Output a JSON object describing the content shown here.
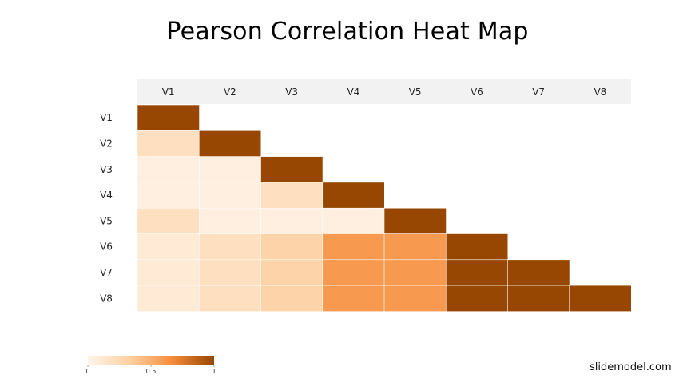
{
  "chart_data": {
    "type": "heatmap",
    "title": "Pearson Correlation Heat Map",
    "x_labels": [
      "V1",
      "V2",
      "V3",
      "V4",
      "V5",
      "V6",
      "V7",
      "V8"
    ],
    "y_labels": [
      "V1",
      "V2",
      "V3",
      "V4",
      "V5",
      "V6",
      "V7",
      "V8"
    ],
    "values": [
      [
        1.0
      ],
      [
        0.2,
        1.0
      ],
      [
        0.05,
        0.05,
        1.0
      ],
      [
        0.05,
        0.05,
        0.2,
        1.0
      ],
      [
        0.2,
        0.05,
        0.05,
        0.05,
        1.0
      ],
      [
        0.1,
        0.2,
        0.3,
        0.6,
        0.6,
        1.0
      ],
      [
        0.1,
        0.2,
        0.3,
        0.6,
        0.6,
        1.0,
        1.0
      ],
      [
        0.1,
        0.2,
        0.3,
        0.6,
        0.6,
        1.0,
        1.0,
        1.0
      ]
    ],
    "colorscale": [
      "#fff5eb",
      "#fdd0a2",
      "#f68c3b",
      "#974701"
    ],
    "legend": {
      "min": 0,
      "max": 1,
      "ticks": [
        "0",
        "0.5",
        "1"
      ],
      "placement": "bottom-left"
    }
  },
  "footer": {
    "brand": "slidemodel.com"
  }
}
